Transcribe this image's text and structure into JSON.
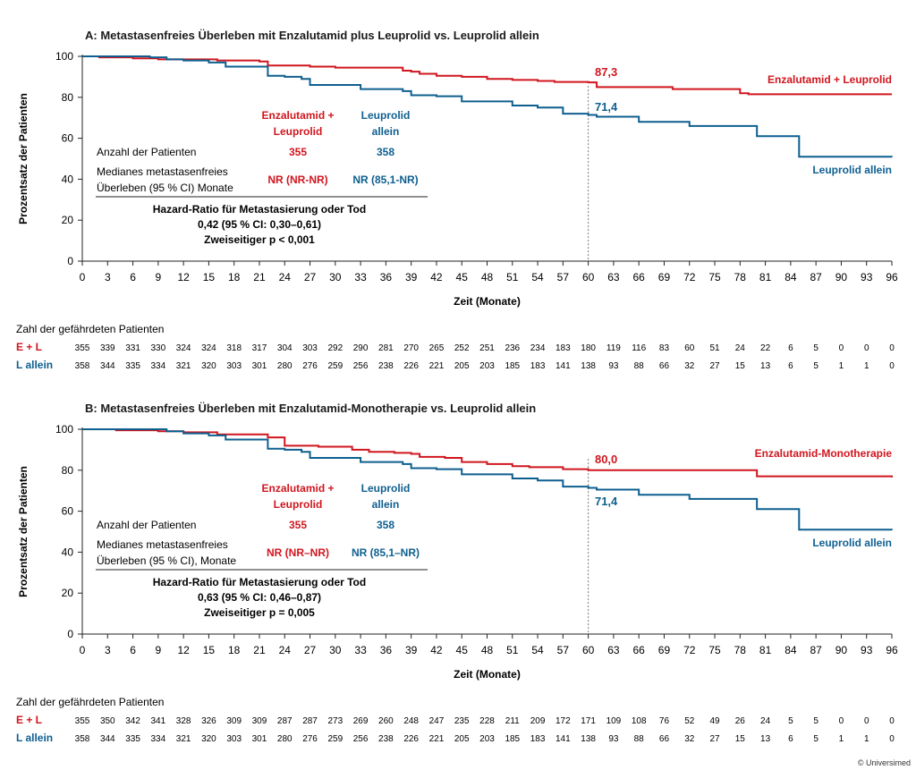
{
  "copyright": "© Universimed",
  "chart_data": [
    {
      "type": "line",
      "title": "A: Metastasenfreies Überleben mit Enzalutamid plus Leuprolid vs. Leuprolid allein",
      "xlabel": "Zeit (Monate)",
      "ylabel": "Prozentsatz der Patienten",
      "xlim": [
        0,
        96
      ],
      "ylim": [
        0,
        100
      ],
      "xticks": [
        0,
        3,
        6,
        9,
        12,
        15,
        18,
        21,
        24,
        27,
        30,
        33,
        36,
        39,
        42,
        45,
        48,
        51,
        54,
        57,
        60,
        63,
        66,
        69,
        72,
        75,
        78,
        81,
        84,
        87,
        90,
        93,
        96
      ],
      "yticks": [
        0,
        20,
        40,
        60,
        80,
        100
      ],
      "vline_x": 60,
      "colors": {
        "ref": "#d0161e",
        "comp": "#0e5f8f"
      },
      "series": [
        {
          "name": "Enzalutamid + Leuprolid",
          "color": "#d0161e",
          "x": [
            0,
            2,
            6,
            9,
            12,
            16,
            21,
            22,
            27,
            30,
            33,
            38,
            39,
            40,
            42,
            45,
            48,
            51,
            54,
            56,
            60,
            61,
            66,
            67,
            70,
            71,
            78,
            79,
            96
          ],
          "y": [
            100,
            99.5,
            99,
            98.5,
            98.5,
            98,
            97.5,
            95.5,
            95,
            94.5,
            94.5,
            93,
            92.5,
            91.5,
            90.5,
            90,
            89,
            88.5,
            88,
            87.5,
            87.3,
            85,
            85,
            85,
            84,
            84,
            82,
            81.5,
            81.5
          ],
          "end_value": "87,3",
          "end_value_x": 60
        },
        {
          "name": "Leuprolid allein",
          "color": "#0e5f8f",
          "x": [
            0,
            2,
            8,
            10,
            12,
            15,
            17,
            21,
            22,
            24,
            26,
            27,
            30,
            33,
            35,
            38,
            39,
            42,
            45,
            48,
            51,
            54,
            57,
            60,
            61,
            66,
            67,
            72,
            79,
            80,
            84,
            85,
            96
          ],
          "y": [
            100,
            100,
            99.5,
            98.5,
            98,
            97,
            95,
            95,
            90.5,
            90,
            89,
            86,
            86,
            84,
            84,
            83,
            81,
            80.5,
            78,
            78,
            76,
            75,
            72,
            71.4,
            70.5,
            68,
            68,
            66,
            66,
            61,
            61,
            51,
            50.8
          ],
          "end_value": "71,4",
          "end_value_x": 60
        }
      ],
      "legend_labels": [
        {
          "text": "Enzalutamid + Leuprolid",
          "color": "#d0161e"
        },
        {
          "text": "Leuprolid allein",
          "color": "#0e5f8f"
        }
      ],
      "info_table": {
        "col1_head": [
          "Enzalutamid +",
          "Leuprolid"
        ],
        "col2_head": [
          "Leuprolid",
          "allein"
        ],
        "row1_label": "Anzahl der Patienten",
        "row1_col1": "355",
        "row1_col2": "358",
        "row2_label": [
          "Medianes metastasenfreies",
          "Überleben (95 % CI) Monate"
        ],
        "row2_col1": "NR (NR-NR)",
        "row2_col2": "NR (85,1-NR)",
        "summary": [
          "Hazard-Ratio für Metastasierung oder Tod",
          "0,42 (95 % CI: 0,30–0,61)",
          "Zweiseitiger p < 0,001"
        ]
      },
      "risk_table": {
        "title": "Zahl der gefährdeten Patienten",
        "rows": [
          {
            "label": "E + L",
            "color": "#d0161e",
            "values": [
              355,
              339,
              331,
              330,
              324,
              324,
              318,
              317,
              304,
              303,
              292,
              290,
              281,
              270,
              265,
              252,
              251,
              236,
              234,
              183,
              180,
              119,
              116,
              83,
              60,
              51,
              24,
              22,
              6,
              5,
              0,
              0,
              0
            ]
          },
          {
            "label": "L allein",
            "color": "#0e5f8f",
            "values": [
              358,
              344,
              335,
              334,
              321,
              320,
              303,
              301,
              280,
              276,
              259,
              256,
              238,
              226,
              221,
              205,
              203,
              185,
              183,
              141,
              138,
              93,
              88,
              66,
              32,
              27,
              15,
              13,
              6,
              5,
              1,
              1,
              0
            ]
          }
        ]
      }
    },
    {
      "type": "line",
      "title": "B: Metastasenfreies Überleben mit Enzalutamid-Monotherapie vs. Leuprolid allein",
      "xlabel": "Zeit (Monate)",
      "ylabel": "Prozentsatz der Patienten",
      "xlim": [
        0,
        96
      ],
      "ylim": [
        0,
        100
      ],
      "xticks": [
        0,
        3,
        6,
        9,
        12,
        15,
        18,
        21,
        24,
        27,
        30,
        33,
        36,
        39,
        42,
        45,
        48,
        51,
        54,
        57,
        60,
        63,
        66,
        69,
        72,
        75,
        78,
        81,
        84,
        87,
        90,
        93,
        96
      ],
      "yticks": [
        0,
        20,
        40,
        60,
        80,
        100
      ],
      "vline_x": 60,
      "colors": {
        "ref": "#d0161e",
        "comp": "#0e5f8f"
      },
      "series": [
        {
          "name": "Enzalutamid-Monotherapie",
          "color": "#d0161e",
          "x": [
            0,
            4,
            9,
            12,
            16,
            22,
            24,
            28,
            32,
            34,
            37,
            39,
            40,
            43,
            45,
            48,
            51,
            53,
            57,
            60,
            63,
            80,
            96
          ],
          "y": [
            100,
            99.5,
            99,
            98.5,
            97.5,
            96,
            92,
            91.5,
            90,
            89,
            88.5,
            88,
            86.5,
            86,
            84,
            83,
            82,
            81.5,
            80.5,
            80,
            80,
            77,
            76.5
          ],
          "end_value": "80,0",
          "end_value_x": 60
        },
        {
          "name": "Leuprolid allein",
          "color": "#0e5f8f",
          "x": [
            0,
            7,
            10,
            12,
            15,
            17,
            21,
            22,
            24,
            26,
            27,
            30,
            33,
            35,
            38,
            39,
            42,
            45,
            48,
            51,
            54,
            57,
            60,
            61,
            66,
            67,
            72,
            79,
            80,
            84,
            85,
            96
          ],
          "y": [
            100,
            100,
            99,
            98,
            97,
            95,
            95,
            90.5,
            90,
            89,
            86,
            86,
            84,
            84,
            83,
            81,
            80.5,
            78,
            78,
            76,
            75,
            72,
            71.4,
            70.5,
            68,
            68,
            66,
            66,
            61,
            61,
            51,
            50.8
          ],
          "end_value": "71,4",
          "end_value_x": 60
        }
      ],
      "legend_labels": [
        {
          "text": "Enzalutamid-Monotherapie",
          "color": "#d0161e"
        },
        {
          "text": "Leuprolid allein",
          "color": "#0e5f8f"
        }
      ],
      "info_table": {
        "col1_head": [
          "Enzalutamid +",
          "Leuprolid"
        ],
        "col2_head": [
          "Leuprolid",
          "allein"
        ],
        "row1_label": "Anzahl der Patienten",
        "row1_col1": "355",
        "row1_col2": "358",
        "row2_label": [
          "Medianes metastasenfreies",
          "Überleben (95 % CI), Monate"
        ],
        "row2_col1": "NR (NR–NR)",
        "row2_col2": "NR (85,1–NR)",
        "summary": [
          "Hazard-Ratio für Metastasierung oder Tod",
          "0,63 (95 % CI: 0,46–0,87)",
          "Zweiseitiger p = 0,005"
        ]
      },
      "risk_table": {
        "title": "Zahl der gefährdeten Patienten",
        "rows": [
          {
            "label": "E + L",
            "color": "#d0161e",
            "values": [
              355,
              350,
              342,
              341,
              328,
              326,
              309,
              309,
              287,
              287,
              273,
              269,
              260,
              248,
              247,
              235,
              228,
              211,
              209,
              172,
              171,
              109,
              108,
              76,
              52,
              49,
              26,
              24,
              5,
              5,
              0,
              0,
              0
            ]
          },
          {
            "label": "L allein",
            "color": "#0e5f8f",
            "values": [
              358,
              344,
              335,
              334,
              321,
              320,
              303,
              301,
              280,
              276,
              259,
              256,
              238,
              226,
              221,
              205,
              203,
              185,
              183,
              141,
              138,
              93,
              88,
              66,
              32,
              27,
              15,
              13,
              6,
              5,
              1,
              1,
              0
            ]
          }
        ]
      }
    }
  ]
}
